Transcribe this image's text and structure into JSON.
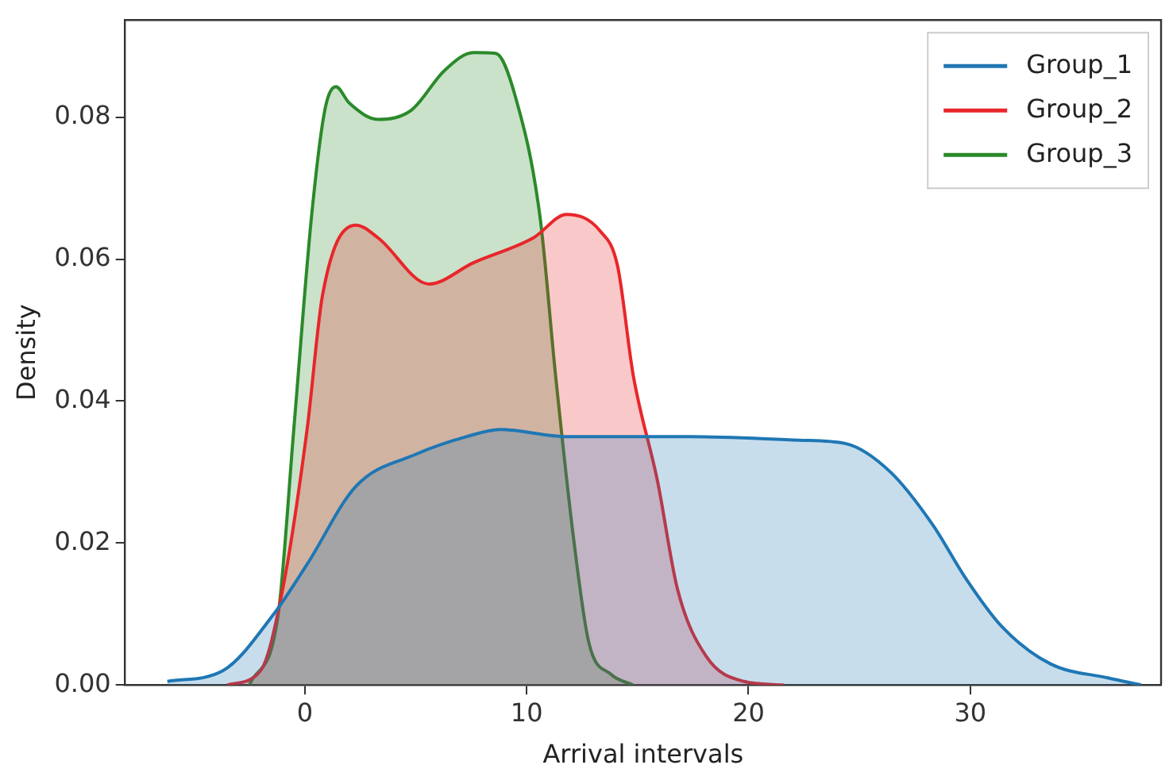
{
  "chart_data": {
    "type": "area",
    "xlabel": "Arrival intervals",
    "ylabel": "Density",
    "xlim": [
      -8.1,
      38.6
    ],
    "ylim": [
      0,
      0.0937
    ],
    "xticks": [
      0,
      10,
      20,
      30
    ],
    "yticks": [
      {
        "value": 0,
        "label": "0.00"
      },
      {
        "value": 0.02,
        "label": "0.02"
      },
      {
        "value": 0.04,
        "label": "0.04"
      },
      {
        "value": 0.06,
        "label": "0.06"
      },
      {
        "value": 0.08,
        "label": "0.08"
      }
    ],
    "grid": false,
    "legend": "top right",
    "marker": "none",
    "line_style": "solid",
    "series": [
      {
        "name": "Group_1",
        "color": "#1f77b4",
        "x": [
          -6.2,
          -3.7,
          -1.4,
          0.1,
          2.3,
          5.0,
          7.3,
          8.8,
          11.8,
          15.3,
          17.4,
          22.3,
          24.4,
          26.4,
          28.3,
          29.8,
          31.4,
          33.6,
          36.2,
          37.7
        ],
        "values": [
          0.0005,
          0.002,
          0.01,
          0.017,
          0.028,
          0.0325,
          0.035,
          0.036,
          0.035,
          0.035,
          0.035,
          0.0345,
          0.034,
          0.03,
          0.0226,
          0.015,
          0.0083,
          0.003,
          0.001,
          0
        ]
      },
      {
        "name": "Group_2",
        "color": "#e8262a",
        "x": [
          -3.5,
          -2.0,
          -1.0,
          0.1,
          0.8,
          2.3,
          3.3,
          5.6,
          7.6,
          10.3,
          11.8,
          13.3,
          14.1,
          14.8,
          15.9,
          16.8,
          18.1,
          19.8,
          21.6
        ],
        "values": [
          0,
          0.002,
          0.0135,
          0.036,
          0.055,
          0.0648,
          0.063,
          0.0565,
          0.0595,
          0.063,
          0.0663,
          0.064,
          0.059,
          0.0437,
          0.0287,
          0.0135,
          0.004,
          0.0005,
          0
        ]
      },
      {
        "name": "Group_3",
        "color": "#2a8a2a",
        "x": [
          -2.5,
          -1.2,
          -0.5,
          0.3,
          0.9,
          1.4,
          2.0,
          3.3,
          4.8,
          6.3,
          7.6,
          8.6,
          9.5,
          10.6,
          11.3,
          12.1,
          12.8,
          13.8,
          14.8
        ],
        "values": [
          0,
          0.01,
          0.036,
          0.066,
          0.081,
          0.0843,
          0.082,
          0.0797,
          0.081,
          0.0866,
          0.0891,
          0.089,
          0.0828,
          0.066,
          0.0437,
          0.021,
          0.006,
          0.0015,
          0
        ]
      }
    ]
  }
}
